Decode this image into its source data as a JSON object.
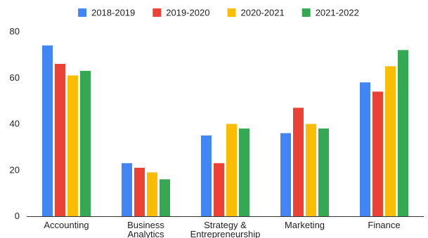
{
  "chart_data": {
    "type": "bar",
    "categories": [
      "Accounting",
      "Business Analytics",
      "Strategy & Entrepreneurship",
      "Marketing",
      "Finance"
    ],
    "category_lines": [
      [
        "Accounting"
      ],
      [
        "Business",
        "Analytics"
      ],
      [
        "Strategy &",
        "Entrepreneurship"
      ],
      [
        "Marketing"
      ],
      [
        "Finance"
      ]
    ],
    "series": [
      {
        "name": "2018-2019",
        "color": "#4285F4",
        "values": [
          74,
          23,
          35,
          36,
          58
        ]
      },
      {
        "name": "2019-2020",
        "color": "#EA4335",
        "values": [
          66,
          21,
          23,
          47,
          54
        ]
      },
      {
        "name": "2020-2021",
        "color": "#FBBC04",
        "values": [
          61,
          19,
          40,
          40,
          65
        ]
      },
      {
        "name": "2021-2022",
        "color": "#34A853",
        "values": [
          63,
          16,
          38,
          38,
          72
        ]
      }
    ],
    "yticks": [
      0,
      20,
      40,
      60,
      80
    ],
    "ylim": [
      0,
      80
    ],
    "grid": false,
    "legend_position": "top"
  }
}
